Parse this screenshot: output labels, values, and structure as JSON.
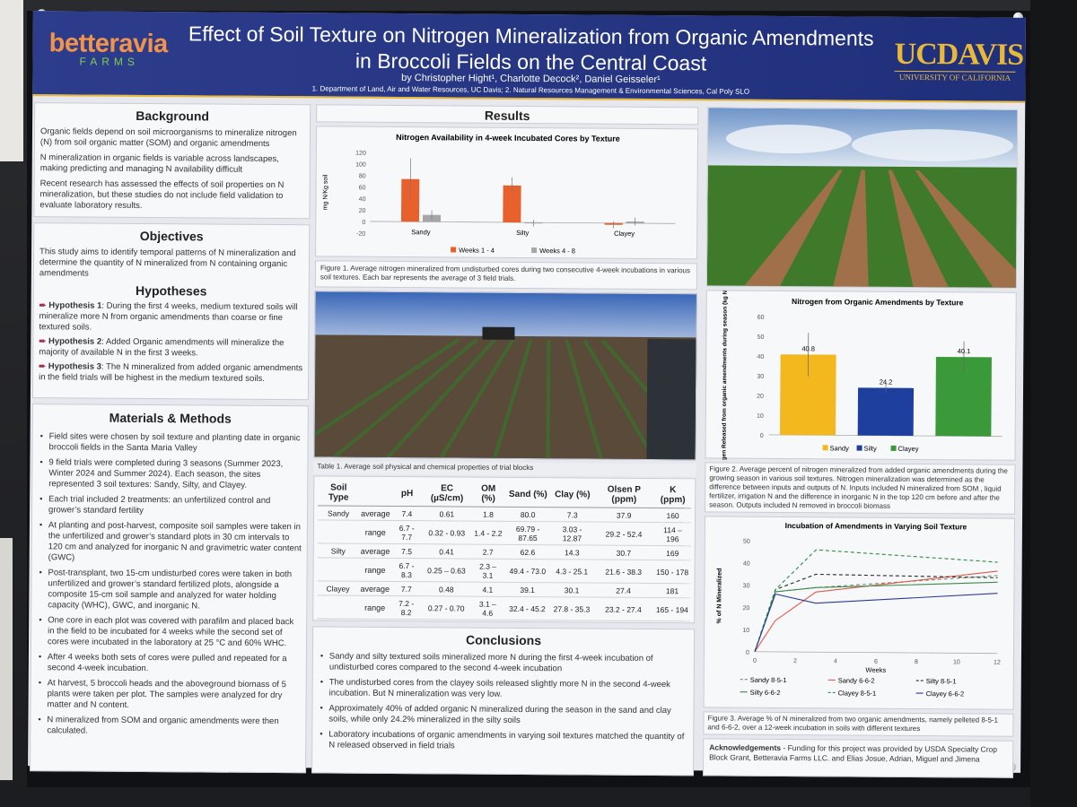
{
  "poster": {
    "title_line1": "Effect of Soil Texture on Nitrogen Mineralization from Organic Amendments",
    "title_line2": "in Broccoli Fields on the Central Coast",
    "authors": "by Christopher Hight¹, Charlotte Decock², Daniel Geisseler¹",
    "affiliations": "1. Department of Land, Air and Water Resources, UC Davis; 2. Natural Resources Management & Environmental Sciences, Cal Poly SLO",
    "logo_left": {
      "name": "betteravia",
      "sub": "FARMS"
    },
    "logo_right": {
      "name": "UCDAVIS",
      "sub": "UNIVERSITY OF CALIFORNIA"
    }
  },
  "background": {
    "heading": "Background",
    "p1": "Organic fields depend on soil microorganisms to mineralize nitrogen (N) from soil organic matter (SOM) and organic amendments",
    "p2": "N mineralization in organic fields is variable across landscapes, making predicting and managing N availability difficult",
    "p3": "Recent research has assessed the effects of soil properties on N mineralization, but these studies do not include field validation to evaluate laboratory results."
  },
  "objectives": {
    "heading": "Objectives",
    "text": "This study aims to identify temporal patterns of N mineralization and determine the quantity of N mineralized from N containing organic amendments"
  },
  "hypotheses": {
    "heading": "Hypotheses",
    "h1_label": "Hypothesis 1",
    "h1_text": ": During the first 4 weeks, medium textured soils will mineralize more N from organic amendments than coarse or fine textured soils.",
    "h2_label": "Hypothesis 2",
    "h2_text": ": Added Organic amendments will mineralize the majority of available N in the first 3 weeks.",
    "h3_label": "Hypothesis 3",
    "h3_text": ": The N mineralized from added organic amendments in the field trials will be highest in the medium textured soils."
  },
  "methods": {
    "heading": "Materials & Methods",
    "items": [
      "Field sites were chosen by soil texture and planting date in organic broccoli fields in the Santa Maria Valley",
      "9 field trials were completed during 3 seasons (Summer 2023, Winter 2024 and Summer 2024). Each season, the sites represented 3 soil textures: Sandy, Silty, and Clayey.",
      "Each trial included 2 treatments: an unfertilized control and grower’s standard fertility",
      "At planting and post-harvest, composite soil samples were taken in the unfertilized and grower’s standard plots in 30 cm intervals to 120 cm and analyzed for inorganic N and gravimetric water content (GWC)",
      "Post-transplant, two 15-cm undisturbed cores were taken in both unfertilized and grower’s standard fertilized plots, alongside a composite 15-cm soil sample and analyzed for water holding capacity (WHC), GWC, and inorganic N.",
      "One core in each plot was covered with parafilm and placed back in the field to be incubated for 4 weeks while the second set of cores were incubated in the laboratory at 25 °C and 60% WHC.",
      "After 4 weeks both sets of cores were pulled and repeated for a second 4-week incubation.",
      "At harvest, 5 broccoli heads and the aboveground biomass of 5 plants were taken per plot. The samples were analyzed for dry matter and N content.",
      "N mineralized from SOM and organic amendments were then calculated."
    ]
  },
  "results": {
    "heading": "Results",
    "fig1_caption": "Figure 1. Average nitrogen mineralized  from undisturbed cores during two consecutive 4-week incubations in various soil textures. Each bar represents the average of 3 field trials.",
    "table_caption": "Table 1. Average soil physical and chemical properties of trial blocks",
    "fig2_caption": "Figure 2. Average percent of nitrogen mineralized from added organic amendments during the growing season in various soil textures. Nitrogen mineralization was determined as the difference between inputs and outputs of N. Inputs included N mineralized from SOM , liquid fertilizer, irrigation N and the difference in inorganic N in the top 120 cm before and after the season. Outputs included N removed in broccoli biomass",
    "fig3_caption": "Figure 3. Average % of N mineralized from two organic amendments, namely pelleted 8-5-1 and 6-6-2, over a 12-week incubation in soils with different textures"
  },
  "table1": {
    "headers": [
      "Soil Type",
      "",
      "pH",
      "EC (µS/cm)",
      "OM (%)",
      "Sand (%)",
      "Clay (%)",
      "Olsen P (ppm)",
      "K (ppm)"
    ],
    "rows": [
      {
        "soil": "Sandy",
        "stat": "average",
        "vals": [
          "7.4",
          "0.61",
          "1.8",
          "80.0",
          "7.3",
          "37.9",
          "160"
        ]
      },
      {
        "soil": "",
        "stat": "range",
        "vals": [
          "6.7 - 7.7",
          "0.32 - 0.93",
          "1.4 - 2.2",
          "69.79 - 87.65",
          "3.03 - 12.87",
          "29.2 - 52.4",
          "114 – 196"
        ]
      },
      {
        "soil": "Silty",
        "stat": "average",
        "vals": [
          "7.5",
          "0.41",
          "2.7",
          "62.6",
          "14.3",
          "30.7",
          "169"
        ]
      },
      {
        "soil": "",
        "stat": "range",
        "vals": [
          "6.7 - 8.3",
          "0.25 – 0.63",
          "2.3 – 3.1",
          "49.4 - 73.0",
          "4.3 - 25.1",
          "21.6 - 38.3",
          "150 - 178"
        ]
      },
      {
        "soil": "Clayey",
        "stat": "average",
        "vals": [
          "7.7",
          "0.48",
          "4.1",
          "39.1",
          "30.1",
          "27.4",
          "181"
        ]
      },
      {
        "soil": "",
        "stat": "range",
        "vals": [
          "7.2 - 8.2",
          "0.27 - 0.70",
          "3.1 – 4.6",
          "32.4 - 45.2",
          "27.8 - 35.3",
          "23.2 - 27.4",
          "165 - 194"
        ]
      }
    ]
  },
  "conclusions": {
    "heading": "Conclusions",
    "items": [
      "Sandy and silty textured soils mineralized more N during the first 4-week incubation of undisturbed cores compared to the second 4-week incubation",
      "The undisturbed cores from the clayey soils released slightly more N in the second 4-week incubation. But N mineralization was very low.",
      "Approximately 40% of added organic N mineralized during the season in the sand and clay soils, while only 24.2% mineralized in the silty soils",
      "Laboratory incubations of organic amendments in varying soil textures matched the quantity of N released observed in field trials"
    ]
  },
  "acknowledgements": {
    "label": "Acknowledgements",
    "text": " - Funding for this project was provided by USDA Specialty Crop Block Grant, Betteravia Farms LLC. and Elias Josue, Adrian, Miguel and Jimena"
  },
  "chart_data": [
    {
      "type": "bar",
      "title": "Nitrogen Availability in 4-week Incubated Cores by Texture",
      "ylabel": "mg N/Kg soil",
      "ylim": [
        -20,
        120
      ],
      "yticks": [
        -20,
        0,
        20,
        40,
        60,
        80,
        100,
        120
      ],
      "categories": [
        "Sandy",
        "Silty",
        "Clayey"
      ],
      "series": [
        {
          "name": "Weeks 1 - 4",
          "color": "#e8602c",
          "values": [
            74,
            64,
            -3
          ],
          "err": [
            36,
            14,
            6
          ]
        },
        {
          "name": "Weeks 4 - 8",
          "color": "#a6a6a6",
          "values": [
            12,
            -1,
            3
          ],
          "err": [
            8,
            6,
            7
          ]
        }
      ],
      "legend": "bottom"
    },
    {
      "type": "bar",
      "title": "Nitrogen from Organic Amendments by Texture",
      "ylabel": "Nitrogen Released from organic amendments during season (kg N / ha)",
      "ylim": [
        0,
        60
      ],
      "yticks": [
        0,
        10,
        20,
        30,
        40,
        50,
        60
      ],
      "categories": [
        "Sandy",
        "Silty",
        "Clayey"
      ],
      "values": [
        40.8,
        24.2,
        40.1
      ],
      "labels": [
        "40.8",
        "24.2",
        "40.1"
      ],
      "err": [
        11,
        2.5,
        8
      ],
      "colors": [
        "#f2b81e",
        "#1f3f9e",
        "#3a9a3a"
      ],
      "legend": "bottom"
    },
    {
      "type": "line",
      "title": "Incubation of Amendments in Varying Soil Texture",
      "xlabel": "Weeks",
      "ylabel": "% of N Mineralized",
      "xlim": [
        0,
        12
      ],
      "ylim": [
        0,
        50
      ],
      "xticks": [
        0,
        2,
        4,
        6,
        8,
        10,
        12
      ],
      "yticks": [
        0,
        10,
        20,
        30,
        40,
        50
      ],
      "x": [
        0,
        1,
        3,
        12
      ],
      "series": [
        {
          "name": "Sandy 8-5-1",
          "color": "#7a8a7a",
          "dash": true,
          "values": [
            0,
            27,
            29,
            35
          ]
        },
        {
          "name": "Sandy 6-6-2",
          "color": "#e05a4a",
          "dash": false,
          "values": [
            0,
            14,
            27,
            37
          ]
        },
        {
          "name": "Silty 8-5-1",
          "color": "#2a2a2a",
          "dash": true,
          "values": [
            0,
            28,
            35,
            34
          ]
        },
        {
          "name": "Silty 6-6-2",
          "color": "#3c8a4a",
          "dash": false,
          "values": [
            0,
            27,
            29,
            32
          ]
        },
        {
          "name": "Clayey 8-5-1",
          "color": "#2e8a4a",
          "dash": true,
          "values": [
            0,
            28,
            46,
            41
          ]
        },
        {
          "name": "Clayey 6-6-2",
          "color": "#2a3a9a",
          "dash": false,
          "values": [
            0,
            26,
            22,
            27
          ]
        }
      ],
      "legend": "bottom"
    }
  ]
}
